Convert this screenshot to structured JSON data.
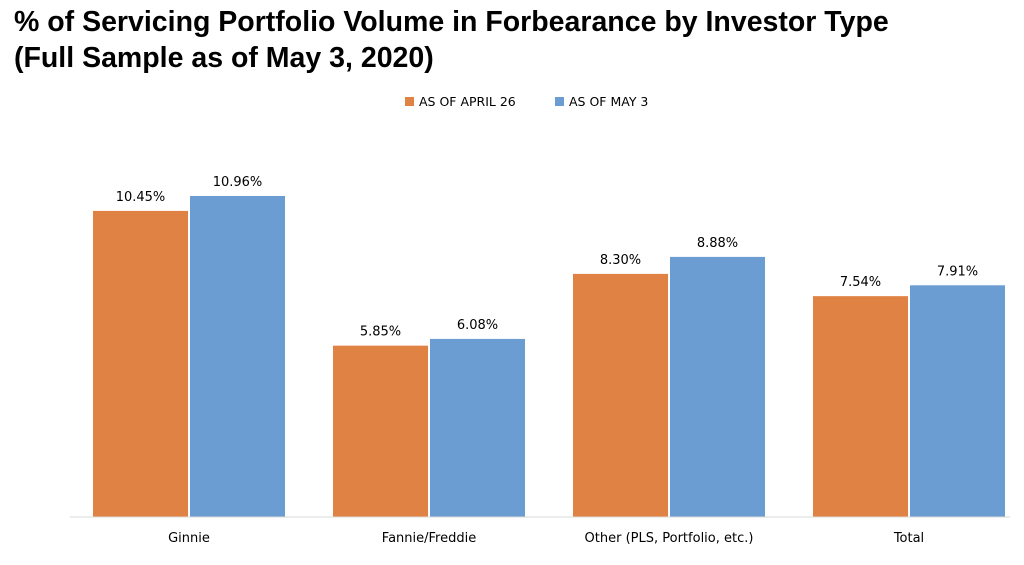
{
  "title_line1": "% of Servicing Portfolio Volume in Forbearance by Investor Type",
  "title_line2": "(Full Sample as of May 3, 2020)",
  "chart_data": {
    "type": "bar",
    "categories": [
      "Ginnie",
      "Fannie/Freddie",
      "Other (PLS, Portfolio, etc.)",
      "Total"
    ],
    "series": [
      {
        "name": "AS OF APRIL 26",
        "values": [
          10.45,
          5.85,
          8.3,
          7.54
        ],
        "labels": [
          "10.45%",
          "5.85%",
          "8.30%",
          "7.54%"
        ],
        "color": "#E08244"
      },
      {
        "name": "AS OF MAY 3",
        "values": [
          10.96,
          6.08,
          8.88,
          7.91
        ],
        "labels": [
          "10.96%",
          "6.08%",
          "8.88%",
          "7.91%"
        ],
        "color": "#6B9CD2"
      }
    ],
    "ylim": [
      0,
      12.7
    ],
    "legend_position": "top-center",
    "grid": false
  }
}
